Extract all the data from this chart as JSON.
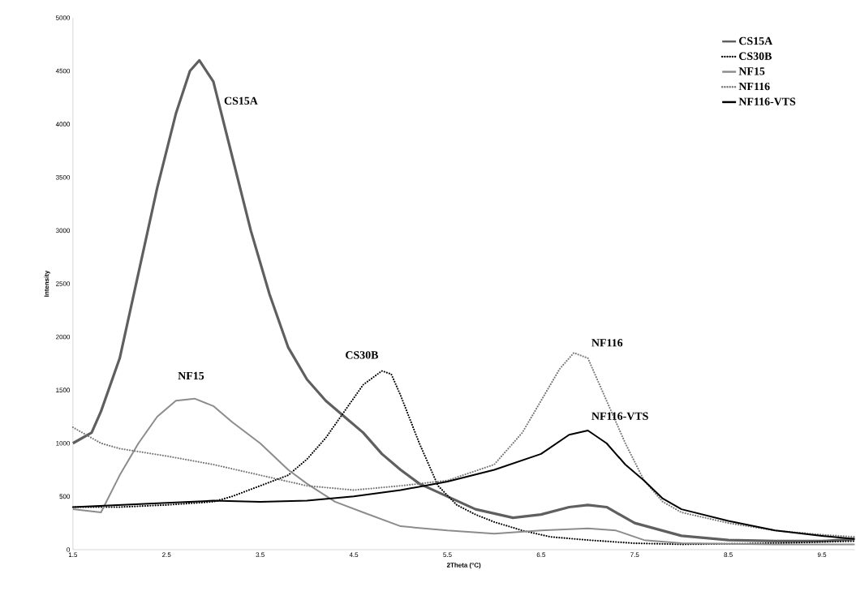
{
  "chart_data": {
    "type": "line",
    "xlabel": "2Theta (°C)",
    "ylabel": "Intensity",
    "xlim": [
      1.5,
      9.85
    ],
    "ylim": [
      0,
      5000
    ],
    "xticks": [
      1.5,
      2.5,
      3.5,
      4.5,
      5.5,
      6.5,
      7.5,
      8.5,
      9.5
    ],
    "yticks": [
      0,
      500,
      1000,
      1500,
      2000,
      2500,
      3000,
      3500,
      4000,
      4500,
      5000
    ],
    "grid": false,
    "legend": "top right",
    "series": [
      {
        "name": "CS15A",
        "color": "#5f5f5f",
        "line_style": "solid",
        "x": [
          1.5,
          1.7,
          1.8,
          2.0,
          2.2,
          2.4,
          2.6,
          2.75,
          2.85,
          3.0,
          3.2,
          3.4,
          3.6,
          3.8,
          4.0,
          4.2,
          4.4,
          4.6,
          4.8,
          5.0,
          5.2,
          5.5,
          5.8,
          6.2,
          6.5,
          6.8,
          7.0,
          7.2,
          7.5,
          8.0,
          8.5,
          9.0,
          9.5,
          9.85
        ],
        "values": [
          1000,
          1100,
          1300,
          1800,
          2600,
          3400,
          4100,
          4500,
          4600,
          4400,
          3700,
          3000,
          2400,
          1900,
          1600,
          1400,
          1250,
          1100,
          900,
          750,
          620,
          500,
          380,
          300,
          330,
          400,
          420,
          400,
          250,
          130,
          90,
          80,
          80,
          100
        ]
      },
      {
        "name": "CS30B",
        "color": "#000000",
        "line_style": "dotted",
        "x": [
          1.5,
          2.0,
          2.5,
          3.0,
          3.2,
          3.5,
          3.8,
          4.0,
          4.2,
          4.4,
          4.6,
          4.8,
          4.9,
          5.0,
          5.2,
          5.4,
          5.6,
          5.8,
          6.0,
          6.3,
          6.6,
          7.0,
          7.5,
          8.0,
          9.0,
          9.85
        ],
        "values": [
          400,
          400,
          420,
          450,
          500,
          600,
          700,
          850,
          1050,
          1300,
          1550,
          1680,
          1650,
          1450,
          1000,
          600,
          420,
          330,
          260,
          180,
          120,
          90,
          60,
          50,
          60,
          80
        ]
      },
      {
        "name": "NF15",
        "color": "#8c8c8c",
        "line_style": "solid",
        "x": [
          1.5,
          1.8,
          2.0,
          2.2,
          2.4,
          2.6,
          2.8,
          3.0,
          3.2,
          3.5,
          3.8,
          4.0,
          4.3,
          4.6,
          5.0,
          5.5,
          6.0,
          6.5,
          7.0,
          7.3,
          7.6,
          8.0,
          9.0,
          9.85
        ],
        "values": [
          380,
          350,
          700,
          1000,
          1250,
          1400,
          1420,
          1350,
          1200,
          1000,
          750,
          620,
          450,
          350,
          220,
          180,
          150,
          180,
          200,
          180,
          90,
          60,
          50,
          50
        ]
      },
      {
        "name": "NF116",
        "color": "#777777",
        "line_style": "dotted",
        "x": [
          1.5,
          1.8,
          2.0,
          2.5,
          3.0,
          3.5,
          4.0,
          4.5,
          5.0,
          5.5,
          6.0,
          6.3,
          6.5,
          6.7,
          6.85,
          7.0,
          7.2,
          7.4,
          7.6,
          7.8,
          8.0,
          8.5,
          9.0,
          9.5,
          9.85
        ],
        "values": [
          1150,
          1000,
          950,
          880,
          800,
          700,
          600,
          560,
          600,
          650,
          800,
          1100,
          1400,
          1700,
          1850,
          1800,
          1400,
          1000,
          650,
          450,
          350,
          250,
          180,
          140,
          120
        ]
      },
      {
        "name": "NF116-VTS",
        "color": "#000000",
        "line_style": "solid",
        "x": [
          1.5,
          2.0,
          2.5,
          3.0,
          3.5,
          4.0,
          4.5,
          5.0,
          5.5,
          6.0,
          6.5,
          6.8,
          7.0,
          7.2,
          7.4,
          7.6,
          7.8,
          8.0,
          8.5,
          9.0,
          9.5,
          9.85
        ],
        "values": [
          400,
          420,
          440,
          460,
          450,
          460,
          500,
          560,
          640,
          750,
          900,
          1080,
          1120,
          1000,
          800,
          650,
          480,
          380,
          270,
          180,
          130,
          100
        ]
      }
    ],
    "annotations": [
      "CS15A",
      "NF15",
      "CS30B",
      "NF116",
      "NF116-VTS"
    ]
  }
}
